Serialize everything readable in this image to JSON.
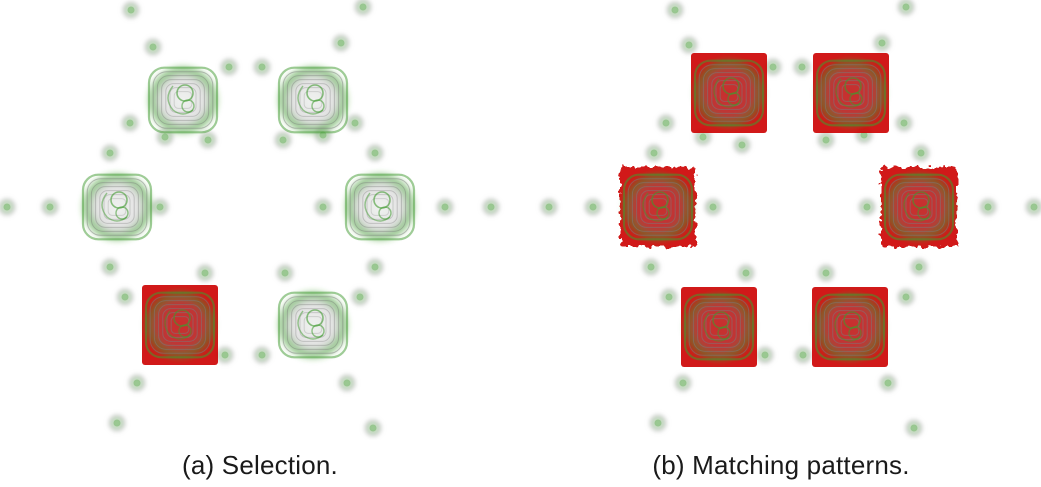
{
  "figure": {
    "panels": [
      {
        "id": "a",
        "caption": "(a) Selection.",
        "highlight_color": "#cc0000",
        "structure_color": "#3f9a2f",
        "glow_color": "#808080",
        "selected_blobs": [
          "bottom-left"
        ],
        "rough_highlights": []
      },
      {
        "id": "b",
        "caption": "(b) Matching patterns.",
        "highlight_color": "#cc0000",
        "structure_color": "#3f9a2f",
        "glow_color": "#808080",
        "selected_blobs": [
          "top-left",
          "top-right",
          "middle-left",
          "middle-right",
          "bottom-left",
          "bottom-right"
        ],
        "rough_highlights": [
          "middle-left",
          "middle-right"
        ]
      }
    ]
  }
}
